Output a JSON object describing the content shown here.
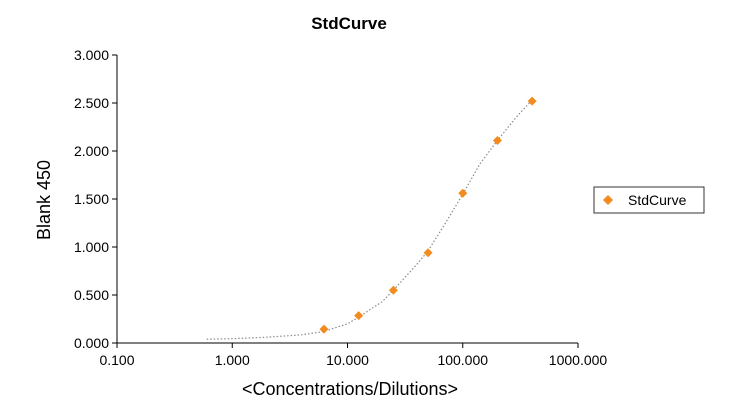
{
  "chart_data": {
    "type": "scatter",
    "title": "StdCurve",
    "xlabel": "<Concentrations/Dilutions>",
    "ylabel": "Blank 450",
    "x_scale": "log",
    "xlim": [
      0.1,
      1000
    ],
    "ylim": [
      0,
      3
    ],
    "x_ticks": [
      "0.100",
      "1.000",
      "10.000",
      "100.000",
      "1000.000"
    ],
    "y_ticks": [
      "0.000",
      "0.500",
      "1.000",
      "1.500",
      "2.000",
      "2.500",
      "3.000"
    ],
    "grid": false,
    "legend_position": "right",
    "series": [
      {
        "name": "StdCurve",
        "color": "#f28c1e",
        "marker": "diamond",
        "x": [
          6.25,
          12.5,
          25,
          50,
          100,
          200,
          400
        ],
        "y": [
          0.145,
          0.285,
          0.55,
          0.94,
          1.56,
          2.11,
          2.52
        ]
      }
    ],
    "fit_curve": {
      "style": "dotted",
      "color": "#8a8a8a",
      "x": [
        0.6,
        1,
        2,
        4,
        6.25,
        10,
        12.5,
        20,
        25,
        40,
        50,
        70,
        100,
        140,
        200,
        300,
        400
      ],
      "y": [
        0.04,
        0.045,
        0.06,
        0.085,
        0.12,
        0.2,
        0.27,
        0.43,
        0.55,
        0.82,
        0.96,
        1.24,
        1.55,
        1.86,
        2.11,
        2.37,
        2.53
      ]
    }
  }
}
